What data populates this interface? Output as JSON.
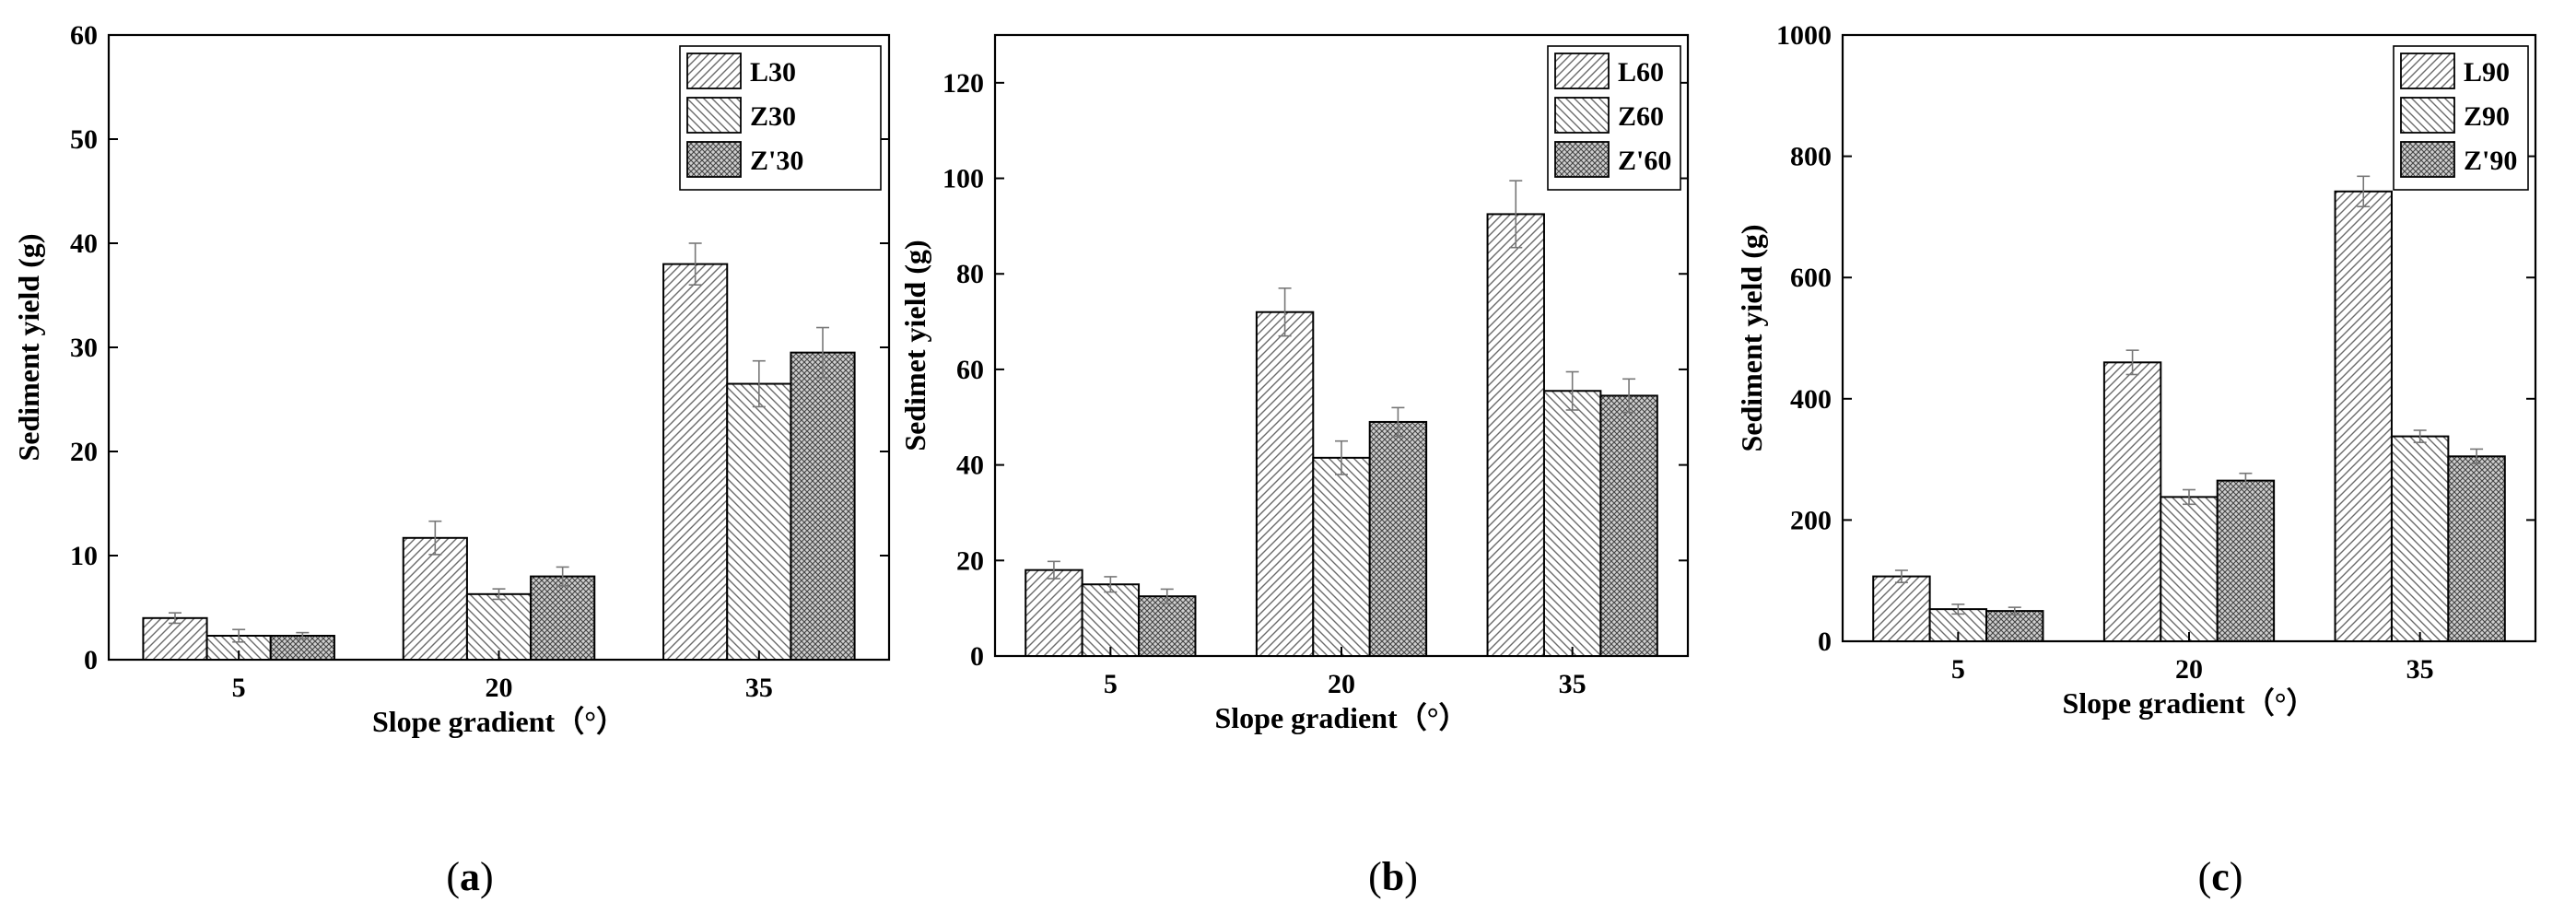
{
  "chart_data": [
    {
      "type": "bar",
      "panel": "a",
      "categories": [
        "5",
        "20",
        "35"
      ],
      "xlabel": "Slope gradient（°）",
      "ylabel": "Sediment yield (g)",
      "ylim": [
        0,
        60
      ],
      "yticks": [
        0,
        10,
        20,
        30,
        40,
        50,
        60
      ],
      "legend_position": "top-right",
      "series": [
        {
          "name": "L30",
          "values": [
            4.0,
            11.7,
            38.0
          ],
          "errors": [
            0.5,
            1.6,
            2.0
          ]
        },
        {
          "name": "Z30",
          "values": [
            2.3,
            6.3,
            26.5
          ],
          "errors": [
            0.6,
            0.5,
            2.2
          ]
        },
        {
          "name": "Z'30",
          "values": [
            2.3,
            8.0,
            29.5
          ],
          "errors": [
            0.3,
            0.9,
            2.4
          ]
        }
      ]
    },
    {
      "type": "bar",
      "panel": "b",
      "categories": [
        "5",
        "20",
        "35"
      ],
      "xlabel": "Slope gradient（°）",
      "ylabel": "Sedimet yield (g)",
      "ylim": [
        0,
        130
      ],
      "yticks": [
        0,
        20,
        40,
        60,
        80,
        100,
        120
      ],
      "legend_position": "top-right",
      "series": [
        {
          "name": "L60",
          "values": [
            18.0,
            72.0,
            92.5
          ],
          "errors": [
            1.8,
            5.0,
            7.0
          ]
        },
        {
          "name": "Z60",
          "values": [
            15.0,
            41.5,
            55.5
          ],
          "errors": [
            1.6,
            3.5,
            4.0
          ]
        },
        {
          "name": "Z'60",
          "values": [
            12.5,
            49.0,
            54.5
          ],
          "errors": [
            1.5,
            3.0,
            3.5
          ]
        }
      ]
    },
    {
      "type": "bar",
      "panel": "c",
      "categories": [
        "5",
        "20",
        "35"
      ],
      "xlabel": "Slope gradient（°）",
      "ylabel": "Sediment yield (g)",
      "ylim": [
        0,
        1000
      ],
      "yticks": [
        0,
        200,
        400,
        600,
        800,
        1000
      ],
      "legend_position": "top-right",
      "series": [
        {
          "name": "L90",
          "values": [
            107,
            460,
            742
          ],
          "errors": [
            10,
            20,
            25
          ]
        },
        {
          "name": "Z90",
          "values": [
            53,
            238,
            338
          ],
          "errors": [
            8,
            12,
            10
          ]
        },
        {
          "name": "Z'90",
          "values": [
            50,
            265,
            305
          ],
          "errors": [
            6,
            12,
            12
          ]
        }
      ]
    }
  ],
  "panel_labels": [
    "a",
    "b",
    "c"
  ]
}
